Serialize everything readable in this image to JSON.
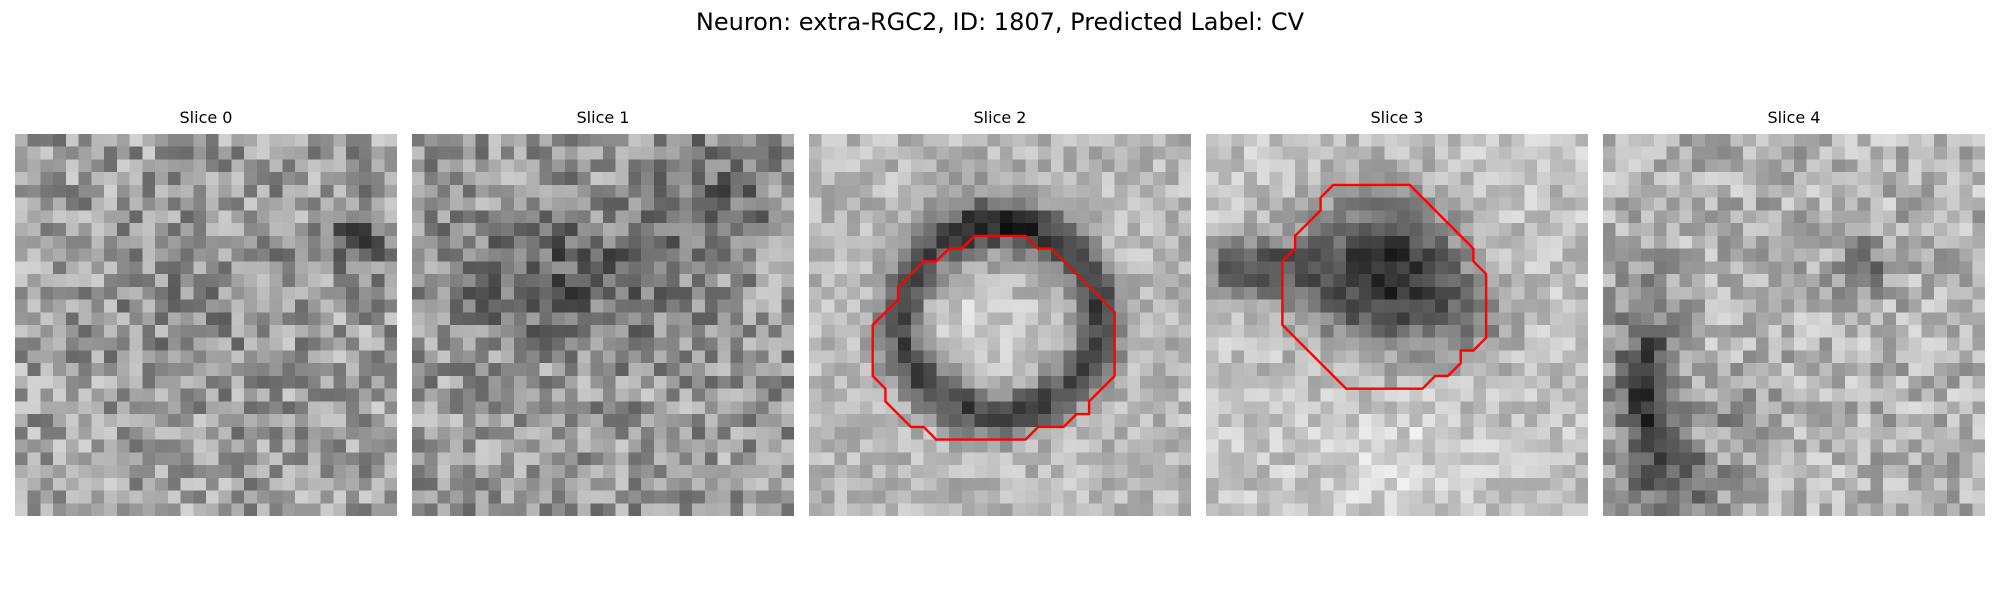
{
  "figure": {
    "title": "Neuron: extra-RGC2, ID: 1807, Predicted Label: CV"
  },
  "slices": [
    {
      "title": "Slice 0",
      "has_contour": false
    },
    {
      "title": "Slice 1",
      "has_contour": false
    },
    {
      "title": "Slice 2",
      "has_contour": true
    },
    {
      "title": "Slice 3",
      "has_contour": true
    },
    {
      "title": "Slice 4",
      "has_contour": false
    }
  ],
  "contour_color": "#ff0000",
  "colormap": "gray"
}
